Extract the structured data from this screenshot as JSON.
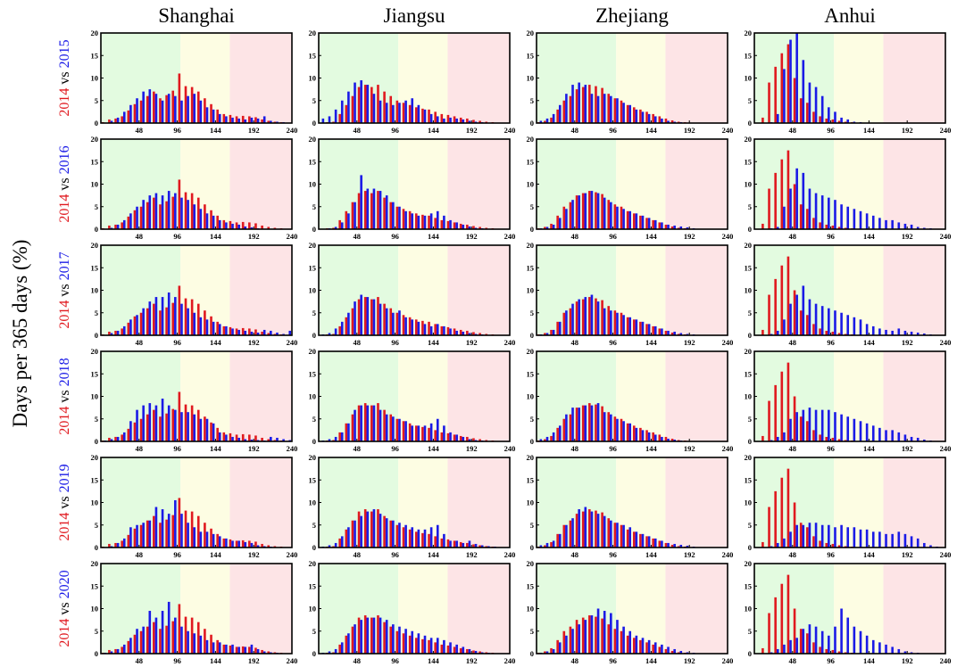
{
  "figure": {
    "ylabel": "Days per 365 days (%)",
    "columns": [
      "Shanghai",
      "Jiangsu",
      "Zhejiang",
      "Anhui"
    ],
    "rows": [
      {
        "base": "2014",
        "sep": "vs",
        "comp": "2015"
      },
      {
        "base": "2014",
        "sep": "vs",
        "comp": "2016"
      },
      {
        "base": "2014",
        "sep": "vs",
        "comp": "2017"
      },
      {
        "base": "2014",
        "sep": "vs",
        "comp": "2018"
      },
      {
        "base": "2014",
        "sep": "vs",
        "comp": "2019"
      },
      {
        "base": "2014",
        "sep": "vs",
        "comp": "2020"
      }
    ],
    "colors": {
      "base": "#e0191f",
      "comp": "#1a1ae6",
      "zone_green": "#e3fbe0",
      "zone_yellow": "#fdfde3",
      "zone_red": "#fde4e6"
    }
  },
  "chart_data": {
    "type": "bar",
    "x_ticks": [
      "0",
      "48",
      "96",
      "144",
      "192",
      "240"
    ],
    "y_ticks": [
      "0",
      "5",
      "10",
      "15",
      "20"
    ],
    "xlim": [
      0,
      240
    ],
    "ylim": [
      0,
      20
    ],
    "bin_width": 8,
    "bin_centers": [
      4,
      12,
      20,
      28,
      36,
      44,
      52,
      60,
      68,
      76,
      84,
      92,
      100,
      108,
      116,
      124,
      132,
      140,
      148,
      156,
      164,
      172,
      180,
      188,
      196,
      204,
      212,
      220,
      228,
      236
    ],
    "background_zones": [
      {
        "from": 0,
        "to": 100,
        "color": "green"
      },
      {
        "from": 100,
        "to": 162,
        "color": "yellow"
      },
      {
        "from": 162,
        "to": 240,
        "color": "red"
      }
    ],
    "base_series": {
      "name": "2014",
      "Shanghai": [
        0.2,
        0.8,
        1.0,
        1.5,
        2.8,
        4.2,
        5.0,
        6.0,
        7.0,
        5.5,
        6.2,
        7.2,
        11.0,
        8.2,
        8.0,
        7.0,
        5.5,
        4.2,
        3.0,
        2.0,
        1.8,
        1.5,
        1.6,
        1.5,
        1.3,
        0.8,
        0.5,
        0.3,
        0.2,
        0.1
      ],
      "Jiangsu": [
        0.1,
        0.2,
        0.3,
        2.0,
        4.0,
        6.0,
        8.0,
        8.5,
        8.0,
        8.5,
        7.0,
        6.0,
        5.0,
        4.5,
        4.0,
        3.5,
        3.2,
        3.0,
        2.5,
        2.0,
        1.8,
        1.5,
        1.2,
        1.0,
        0.7,
        0.5,
        0.3,
        0.2,
        0.1,
        0.1
      ],
      "Zhejiang": [
        0.2,
        0.5,
        1.2,
        3.0,
        5.0,
        6.0,
        7.5,
        8.0,
        8.5,
        8.2,
        7.8,
        6.5,
        5.5,
        5.0,
        4.0,
        3.5,
        3.0,
        2.5,
        2.0,
        1.5,
        1.0,
        0.6,
        0.3,
        0.2,
        0.1,
        0.1,
        0.1,
        0.1,
        0.1,
        0.1
      ],
      "Anhui": [
        0.1,
        1.2,
        9.0,
        12.5,
        15.5,
        17.5,
        10.0,
        5.5,
        4.5,
        2.5,
        1.5,
        1.0,
        0.8,
        0.5,
        0.3,
        0.2,
        0.1,
        0.1,
        0.1,
        0.1,
        0.1,
        0.1,
        0.1,
        0.1,
        0.1,
        0.1,
        0.1,
        0.1,
        0.1,
        0.1
      ]
    },
    "comparison_series": [
      {
        "name": "2015",
        "Shanghai": [
          0.1,
          0.5,
          1.2,
          2.5,
          4.0,
          5.5,
          7.0,
          7.5,
          6.5,
          5.0,
          6.5,
          6.0,
          5.0,
          6.0,
          6.5,
          5.0,
          3.5,
          3.0,
          2.0,
          1.5,
          1.2,
          1.0,
          0.8,
          1.2,
          1.0,
          1.5,
          0.5,
          0.3,
          0.2,
          0.1
        ],
        "Jiangsu": [
          1.0,
          1.5,
          3.0,
          5.0,
          7.0,
          9.0,
          9.5,
          8.5,
          6.5,
          5.0,
          4.5,
          4.0,
          4.5,
          5.0,
          5.5,
          4.0,
          3.0,
          2.0,
          1.5,
          1.0,
          1.2,
          1.0,
          0.8,
          0.5,
          0.3,
          0.2,
          0.1,
          0.1,
          0.1,
          0.1
        ],
        "Zhejiang": [
          0.5,
          1.0,
          2.0,
          4.0,
          6.5,
          8.5,
          9.0,
          8.5,
          6.5,
          6.0,
          6.5,
          6.0,
          5.5,
          4.5,
          4.0,
          3.0,
          2.5,
          2.0,
          1.5,
          1.0,
          0.5,
          0.3,
          0.2,
          0.1,
          0.1,
          0.1,
          0.1,
          0.1,
          0.1,
          0.1
        ],
        "Anhui": [
          0.1,
          0.1,
          0.2,
          2.0,
          12.0,
          18.5,
          20.0,
          14.0,
          9.0,
          8.0,
          6.0,
          3.5,
          2.5,
          1.2,
          0.8,
          0.3,
          0.2,
          0.1,
          0.1,
          0.1,
          0.1,
          0.1,
          0.1,
          0.1,
          0.1,
          0.1,
          0.1,
          0.1,
          0.1,
          0.1
        ]
      },
      {
        "name": "2016",
        "Shanghai": [
          0.1,
          0.3,
          1.0,
          2.0,
          3.5,
          5.0,
          6.5,
          7.5,
          8.0,
          7.5,
          8.5,
          8.0,
          7.0,
          6.5,
          5.5,
          4.5,
          3.5,
          3.0,
          2.0,
          1.5,
          1.2,
          1.0,
          0.6,
          0.4,
          0.2,
          0.1,
          0.1,
          0.1,
          0.1,
          0.1
        ],
        "Jiangsu": [
          0.1,
          0.2,
          0.5,
          1.5,
          3.5,
          6.0,
          12.0,
          9.0,
          9.0,
          8.5,
          7.5,
          6.0,
          5.0,
          4.0,
          3.5,
          3.0,
          3.0,
          3.5,
          4.0,
          3.0,
          2.0,
          1.5,
          1.0,
          0.6,
          0.3,
          0.2,
          0.1,
          0.1,
          0.1,
          0.1
        ],
        "Zhejiang": [
          0.2,
          0.5,
          1.0,
          2.5,
          4.5,
          6.5,
          7.5,
          8.0,
          8.5,
          8.0,
          7.0,
          6.0,
          5.0,
          4.5,
          4.0,
          3.5,
          3.0,
          2.5,
          2.0,
          1.5,
          1.0,
          0.8,
          0.6,
          0.4,
          0.2,
          0.1,
          0.1,
          0.1,
          0.1,
          0.1
        ],
        "Anhui": [
          0.1,
          0.1,
          0.2,
          0.5,
          5.0,
          9.0,
          13.5,
          12.5,
          9.0,
          8.0,
          7.5,
          7.0,
          6.5,
          5.5,
          5.0,
          4.5,
          4.0,
          3.5,
          3.0,
          2.5,
          2.0,
          2.0,
          1.5,
          1.2,
          1.0,
          0.5,
          0.3,
          0.2,
          0.1,
          0.1
        ]
      },
      {
        "name": "2017",
        "Shanghai": [
          0.1,
          0.5,
          1.0,
          2.0,
          3.5,
          4.5,
          6.0,
          7.5,
          8.5,
          8.5,
          9.5,
          8.5,
          7.0,
          6.0,
          5.0,
          4.0,
          3.5,
          3.0,
          2.5,
          2.0,
          1.5,
          1.2,
          1.0,
          0.8,
          0.6,
          1.2,
          1.0,
          0.6,
          0.3,
          1.0
        ],
        "Jiangsu": [
          0.2,
          0.5,
          1.5,
          3.0,
          5.0,
          7.5,
          9.0,
          8.5,
          8.0,
          7.0,
          6.0,
          5.0,
          5.5,
          4.0,
          3.5,
          3.0,
          2.5,
          2.0,
          2.5,
          2.0,
          1.5,
          1.0,
          0.8,
          0.5,
          0.3,
          0.2,
          0.1,
          0.1,
          0.1,
          0.1
        ],
        "Zhejiang": [
          0.2,
          0.5,
          1.2,
          3.0,
          5.5,
          7.0,
          8.0,
          8.5,
          9.0,
          7.5,
          6.0,
          5.5,
          5.0,
          4.5,
          4.0,
          3.5,
          3.0,
          2.5,
          2.0,
          1.5,
          1.0,
          0.8,
          0.5,
          0.3,
          0.2,
          0.1,
          0.1,
          0.1,
          0.1,
          0.1
        ],
        "Anhui": [
          0.1,
          0.1,
          0.3,
          1.0,
          3.5,
          7.0,
          9.0,
          11.0,
          8.0,
          7.0,
          6.5,
          6.0,
          5.5,
          5.0,
          4.5,
          4.0,
          3.5,
          2.5,
          2.0,
          1.5,
          1.2,
          1.0,
          1.5,
          1.0,
          0.8,
          0.6,
          0.4,
          0.2,
          0.1,
          0.1
        ]
      },
      {
        "name": "2018",
        "Shanghai": [
          0.2,
          0.5,
          1.0,
          2.0,
          4.5,
          7.0,
          8.0,
          8.5,
          8.0,
          9.5,
          8.0,
          7.0,
          6.5,
          6.5,
          6.0,
          5.0,
          5.0,
          4.0,
          2.0,
          1.5,
          1.0,
          0.8,
          0.5,
          0.4,
          0.3,
          0.2,
          1.0,
          0.8,
          0.5,
          0.3
        ],
        "Jiangsu": [
          0.2,
          0.5,
          1.0,
          2.0,
          4.0,
          7.0,
          8.0,
          8.0,
          8.0,
          7.0,
          6.0,
          5.5,
          5.0,
          4.5,
          3.5,
          3.5,
          3.5,
          4.0,
          5.0,
          3.5,
          2.0,
          1.5,
          1.0,
          0.5,
          0.3,
          0.2,
          0.1,
          0.1,
          0.1,
          0.1
        ],
        "Zhejiang": [
          0.5,
          1.0,
          2.0,
          3.5,
          6.0,
          7.5,
          7.5,
          8.0,
          8.0,
          8.5,
          6.5,
          6.0,
          5.0,
          4.5,
          4.0,
          3.0,
          2.5,
          2.0,
          1.5,
          1.0,
          0.6,
          0.4,
          0.2,
          0.1,
          0.1,
          0.1,
          0.1,
          0.1,
          0.1,
          0.1
        ],
        "Anhui": [
          0.1,
          0.1,
          0.3,
          1.0,
          2.0,
          5.0,
          6.5,
          7.0,
          7.5,
          7.0,
          7.0,
          7.0,
          6.5,
          6.0,
          5.5,
          5.0,
          4.5,
          4.0,
          3.5,
          3.0,
          2.5,
          2.5,
          2.0,
          1.5,
          1.0,
          0.8,
          0.4,
          0.2,
          0.1,
          0.1
        ]
      },
      {
        "name": "2019",
        "Shanghai": [
          0.1,
          0.3,
          1.0,
          2.0,
          4.5,
          5.0,
          5.5,
          6.0,
          9.0,
          8.5,
          7.5,
          10.5,
          7.5,
          5.5,
          4.5,
          3.5,
          3.5,
          3.0,
          2.5,
          2.0,
          1.5,
          1.5,
          1.2,
          1.0,
          0.5,
          0.3,
          0.2,
          0.1,
          0.1,
          0.1
        ],
        "Jiangsu": [
          0.2,
          0.5,
          1.0,
          2.5,
          4.5,
          6.0,
          7.0,
          8.0,
          8.5,
          7.5,
          6.5,
          6.0,
          5.5,
          5.0,
          4.5,
          4.0,
          4.0,
          4.5,
          5.0,
          3.0,
          1.5,
          1.5,
          1.0,
          1.5,
          0.8,
          0.5,
          0.3,
          0.2,
          0.1,
          0.1
        ],
        "Zhejiang": [
          0.5,
          1.0,
          1.5,
          3.0,
          5.0,
          6.5,
          8.5,
          9.0,
          8.0,
          7.5,
          7.0,
          6.0,
          5.5,
          5.0,
          4.5,
          3.5,
          3.0,
          2.5,
          2.0,
          1.5,
          1.0,
          0.8,
          0.6,
          0.4,
          0.2,
          0.1,
          0.1,
          0.1,
          0.1,
          0.1
        ],
        "Anhui": [
          0.1,
          0.1,
          0.3,
          1.0,
          2.0,
          3.5,
          5.0,
          5.0,
          5.5,
          5.5,
          5.0,
          5.0,
          4.5,
          5.0,
          4.5,
          4.5,
          4.0,
          4.0,
          3.5,
          3.5,
          3.0,
          3.0,
          3.5,
          3.0,
          2.5,
          2.0,
          1.0,
          0.5,
          0.2,
          0.1
        ]
      },
      {
        "name": "2020",
        "Shanghai": [
          0.2,
          0.5,
          1.0,
          2.0,
          3.5,
          5.5,
          6.0,
          9.5,
          8.0,
          9.5,
          11.5,
          8.0,
          6.0,
          5.0,
          4.5,
          4.0,
          3.0,
          2.5,
          2.5,
          2.0,
          2.0,
          1.5,
          1.5,
          2.0,
          1.0,
          0.5,
          0.3,
          0.2,
          0.1,
          0.1
        ],
        "Jiangsu": [
          0.2,
          0.5,
          1.0,
          2.5,
          4.5,
          6.5,
          7.5,
          8.0,
          8.0,
          8.0,
          7.5,
          6.5,
          6.0,
          5.5,
          5.0,
          4.5,
          4.0,
          3.5,
          3.5,
          3.0,
          2.5,
          2.0,
          1.5,
          1.0,
          0.6,
          0.3,
          0.2,
          0.1,
          0.1,
          0.1
        ],
        "Zhejiang": [
          0.2,
          0.5,
          1.0,
          2.5,
          4.0,
          5.5,
          6.5,
          7.5,
          8.5,
          10.0,
          9.5,
          9.0,
          7.5,
          6.0,
          5.0,
          4.0,
          3.5,
          3.0,
          2.5,
          2.0,
          1.5,
          1.0,
          0.6,
          0.3,
          0.2,
          0.1,
          0.1,
          0.1,
          0.1,
          0.1
        ],
        "Anhui": [
          0.1,
          0.1,
          0.3,
          1.0,
          2.0,
          3.0,
          3.5,
          5.5,
          6.5,
          6.0,
          5.0,
          4.0,
          6.0,
          10.0,
          8.0,
          6.0,
          5.0,
          4.0,
          3.0,
          2.5,
          2.0,
          1.5,
          1.0,
          0.5,
          0.3,
          0.2,
          0.1,
          0.1,
          0.1,
          0.1
        ]
      }
    ]
  }
}
